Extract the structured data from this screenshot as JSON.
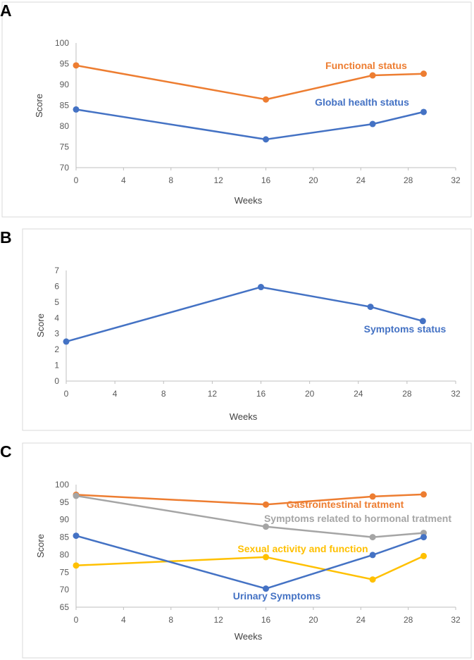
{
  "chart_data": [
    {
      "panel": "A",
      "type": "line",
      "xlabel": "Weeks",
      "ylabel": "Score",
      "xlim": [
        0,
        32
      ],
      "ylim": [
        70,
        100
      ],
      "xticks": [
        0,
        4,
        8,
        12,
        16,
        20,
        24,
        28,
        32
      ],
      "yticks": [
        70,
        75,
        80,
        85,
        90,
        95,
        100
      ],
      "grid": false,
      "series": [
        {
          "name": "Functional status",
          "color": "#ED7D31",
          "x": [
            0,
            16,
            25,
            29.3
          ],
          "y": [
            94.6,
            86.4,
            92.2,
            92.6
          ]
        },
        {
          "name": "Global health status",
          "color": "#4472C4",
          "x": [
            0,
            16,
            25,
            29.3
          ],
          "y": [
            84.0,
            76.8,
            80.5,
            83.4
          ]
        }
      ]
    },
    {
      "panel": "B",
      "type": "line",
      "xlabel": "Weeks",
      "ylabel": "Score",
      "xlim": [
        0,
        32
      ],
      "ylim": [
        0,
        7
      ],
      "xticks": [
        0,
        4,
        8,
        12,
        16,
        20,
        24,
        28,
        32
      ],
      "yticks": [
        0,
        1,
        2,
        3,
        4,
        5,
        6,
        7
      ],
      "grid": false,
      "series": [
        {
          "name": "Symptoms status",
          "color": "#4472C4",
          "x": [
            0,
            16,
            25,
            29.3
          ],
          "y": [
            2.5,
            5.95,
            4.7,
            3.8
          ]
        }
      ]
    },
    {
      "panel": "C",
      "type": "line",
      "xlabel": "Weeks",
      "ylabel": "Score",
      "xlim": [
        0,
        32
      ],
      "ylim": [
        65,
        100
      ],
      "xticks": [
        0,
        4,
        8,
        12,
        16,
        20,
        24,
        28,
        32
      ],
      "yticks": [
        65,
        70,
        75,
        80,
        85,
        90,
        95,
        100
      ],
      "grid": false,
      "series": [
        {
          "name": "Gastrointestinal tratment",
          "color": "#ED7D31",
          "x": [
            0,
            16,
            25,
            29.3
          ],
          "y": [
            97.1,
            94.3,
            96.6,
            97.2
          ]
        },
        {
          "name": "Symptoms related to hormonal tratment",
          "color": "#A5A5A5",
          "x": [
            0,
            16,
            25,
            29.3
          ],
          "y": [
            96.8,
            88.0,
            85.0,
            86.2
          ]
        },
        {
          "name": "Sexual activity and function",
          "color": "#FFC000",
          "x": [
            0,
            16,
            25,
            29.3
          ],
          "y": [
            76.9,
            79.3,
            72.9,
            79.6
          ]
        },
        {
          "name": "Urinary Symptoms",
          "color": "#4472C4",
          "x": [
            0,
            16,
            25,
            29.3
          ],
          "y": [
            85.4,
            70.3,
            79.9,
            85.0
          ]
        }
      ]
    }
  ]
}
